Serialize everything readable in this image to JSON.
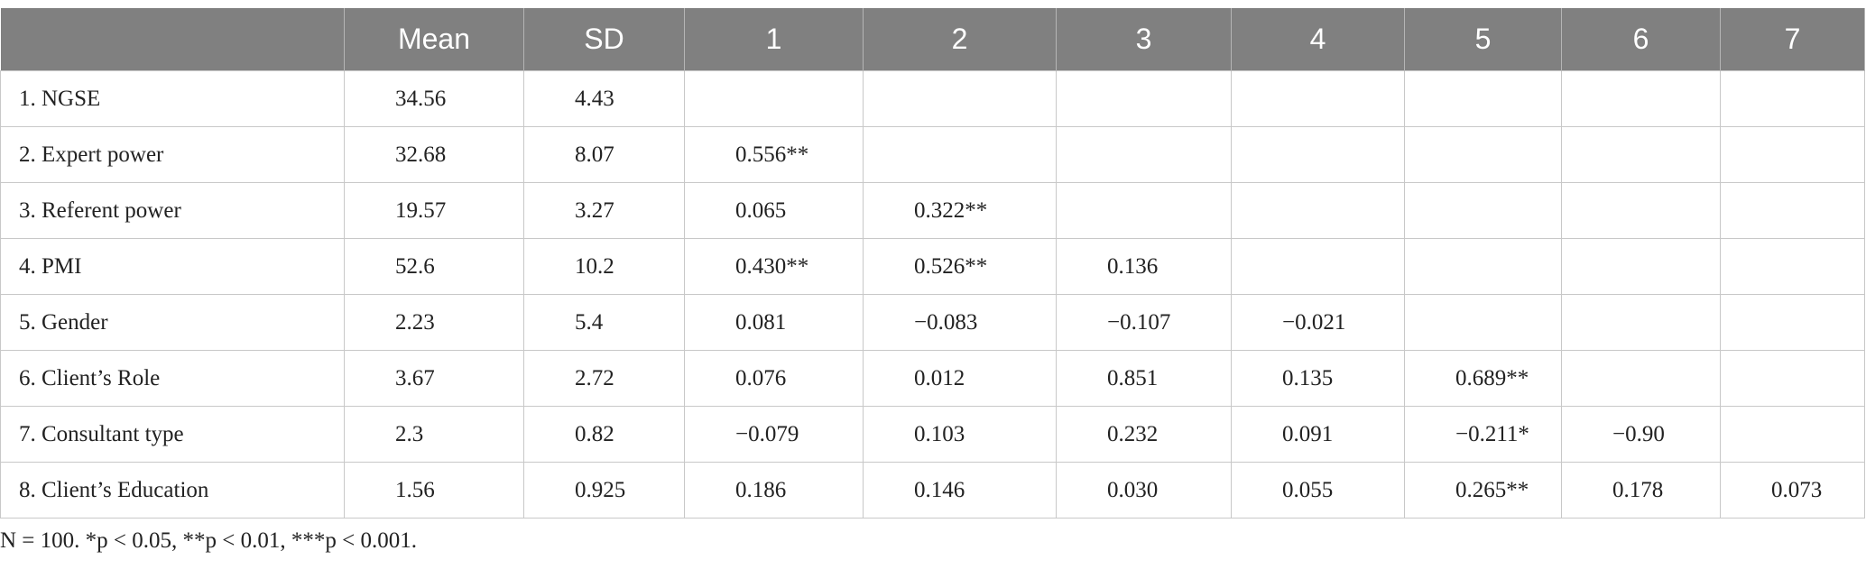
{
  "table": {
    "header": [
      "Mean",
      "SD",
      "1",
      "2",
      "3",
      "4",
      "5",
      "6",
      "7"
    ],
    "rows": [
      [
        "1. NGSE",
        "34.56",
        "4.43"
      ],
      [
        "2. Expert power",
        "32.68",
        "8.07",
        "0.556**"
      ],
      [
        "3. Referent power",
        "19.57",
        "3.27",
        "0.065",
        "0.322**"
      ],
      [
        "4. PMI",
        "52.6",
        "10.2",
        "0.430**",
        "0.526**",
        "0.136"
      ],
      [
        "5. Gender",
        "2.23",
        "5.4",
        "0.081",
        "−0.083",
        "−0.107",
        "−0.021"
      ],
      [
        "6. Client’s Role",
        "3.67",
        "2.72",
        "0.076",
        "0.012",
        "0.851",
        "0.135",
        "0.689**"
      ],
      [
        "7. Consultant type",
        "2.3",
        "0.82",
        "−0.079",
        "0.103",
        "0.232",
        "0.091",
        "−0.211*",
        "−0.90"
      ],
      [
        "8. Client’s Education",
        "1.56",
        "0.925",
        "0.186",
        "0.146",
        "0.030",
        "0.055",
        "0.265**",
        "0.178",
        "0.073"
      ]
    ]
  },
  "note": "N = 100. *p < 0.05, **p < 0.01, ***p < 0.001."
}
